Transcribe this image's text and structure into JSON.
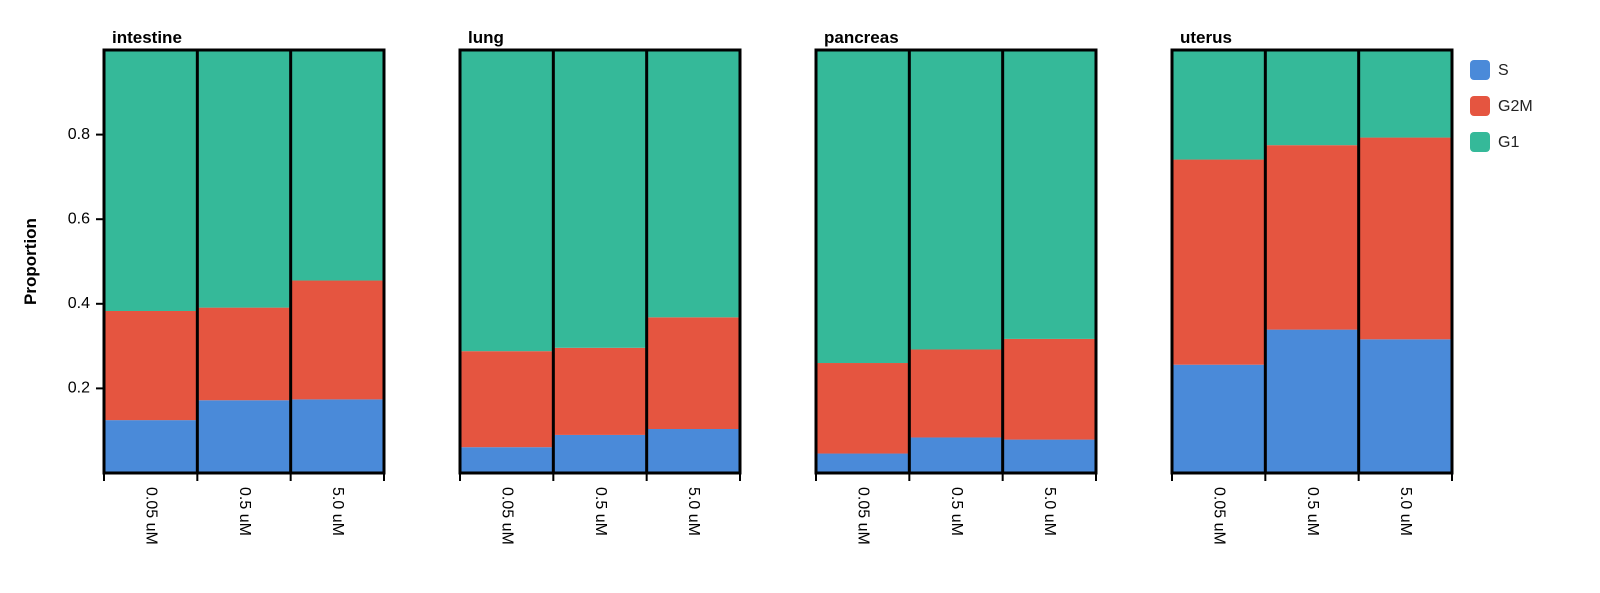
{
  "chart_data": {
    "type": "bar",
    "stacked": true,
    "ylabel": "Proportion",
    "ylim": [
      0,
      1
    ],
    "yticks": [
      "0.2",
      "0.4",
      "0.6",
      "0.8"
    ],
    "categories": [
      "0.05 uM",
      "0.5 uM",
      "5.0 uM"
    ],
    "legend": {
      "position": "right",
      "items": [
        {
          "name": "S",
          "color": "#4a8ad9"
        },
        {
          "name": "G2M",
          "color": "#e55540"
        },
        {
          "name": "G1",
          "color": "#35b999"
        }
      ]
    },
    "panels": [
      {
        "title": "intestine",
        "series": [
          {
            "name": "S",
            "values": [
              0.125,
              0.172,
              0.174
            ]
          },
          {
            "name": "G2M",
            "values": [
              0.258,
              0.219,
              0.281
            ]
          },
          {
            "name": "G1",
            "values": [
              0.617,
              0.609,
              0.545
            ]
          }
        ]
      },
      {
        "title": "lung",
        "series": [
          {
            "name": "S",
            "values": [
              0.061,
              0.09,
              0.104
            ]
          },
          {
            "name": "G2M",
            "values": [
              0.227,
              0.206,
              0.264
            ]
          },
          {
            "name": "G1",
            "values": [
              0.712,
              0.704,
              0.632
            ]
          }
        ]
      },
      {
        "title": "pancreas",
        "series": [
          {
            "name": "S",
            "values": [
              0.046,
              0.084,
              0.079
            ]
          },
          {
            "name": "G2M",
            "values": [
              0.214,
              0.208,
              0.238
            ]
          },
          {
            "name": "G1",
            "values": [
              0.74,
              0.708,
              0.683
            ]
          }
        ]
      },
      {
        "title": "uterus",
        "series": [
          {
            "name": "S",
            "values": [
              0.256,
              0.339,
              0.316
            ]
          },
          {
            "name": "G2M",
            "values": [
              0.485,
              0.436,
              0.477
            ]
          },
          {
            "name": "G1",
            "values": [
              0.259,
              0.225,
              0.207
            ]
          }
        ]
      }
    ]
  }
}
